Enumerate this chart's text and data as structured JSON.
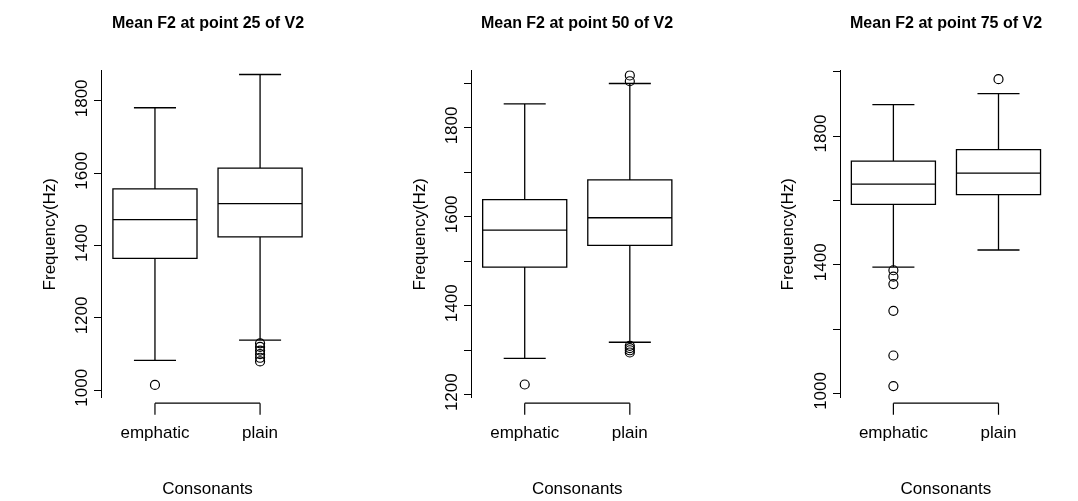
{
  "chart_data": [
    {
      "type": "box",
      "title": "Mean F2 at point 25 of V2",
      "xlabel": "Consonants",
      "ylabel": "Frequency(Hz)",
      "categories": [
        "emphatic",
        "plain"
      ],
      "ylim": [
        978,
        1885
      ],
      "yticks": [
        1000,
        1200,
        1400,
        1600,
        1800
      ],
      "boxes": [
        {
          "low": 1083,
          "q1": 1365,
          "median": 1472,
          "q3": 1557,
          "high": 1781,
          "outliers": [
            1015
          ]
        },
        {
          "low": 1139,
          "q1": 1424,
          "median": 1516,
          "q3": 1614,
          "high": 1873,
          "outliers": [
            1130,
            1120,
            1110,
            1100,
            1090,
            1080
          ]
        }
      ]
    },
    {
      "type": "box",
      "title": "Mean F2 at point 50 of V2",
      "xlabel": "Consonants",
      "ylabel": "Frequency(Hz)",
      "categories": [
        "emphatic",
        "plain"
      ],
      "ylim": [
        1192,
        1930
      ],
      "yticks": [
        1200,
        {
          "value": 1300,
          "label": null
        },
        1400,
        {
          "value": 1500,
          "label": null
        },
        1600,
        {
          "value": 1700,
          "label": null
        },
        1800,
        {
          "value": 1900,
          "label": null
        }
      ],
      "boxes": [
        {
          "low": 1282,
          "q1": 1487,
          "median": 1570,
          "q3": 1639,
          "high": 1854,
          "outliers": [
            1223
          ]
        },
        {
          "low": 1318,
          "q1": 1536,
          "median": 1598,
          "q3": 1683,
          "high": 1900,
          "outliers": [
            1310,
            1305,
            1300,
            1295,
            1905,
            1918
          ]
        }
      ]
    },
    {
      "type": "box",
      "title": "Mean F2 at point 75 of V2",
      "xlabel": "Consonants",
      "ylabel": "Frequency(Hz)",
      "categories": [
        "emphatic",
        "plain"
      ],
      "ylim": [
        985,
        2005
      ],
      "yticks": [
        1000,
        {
          "value": 1200,
          "label": null
        },
        1400,
        {
          "value": 1600,
          "label": null
        },
        1800,
        {
          "value": 2000,
          "label": null
        }
      ],
      "boxes": [
        {
          "low": 1393,
          "q1": 1588,
          "median": 1651,
          "q3": 1722,
          "high": 1898,
          "outliers": [
            1383,
            1363,
            1340,
            1257,
            1118,
            1023
          ]
        },
        {
          "low": 1446,
          "q1": 1618,
          "median": 1685,
          "q3": 1758,
          "high": 1932,
          "outliers": [
            1977
          ]
        }
      ]
    }
  ]
}
